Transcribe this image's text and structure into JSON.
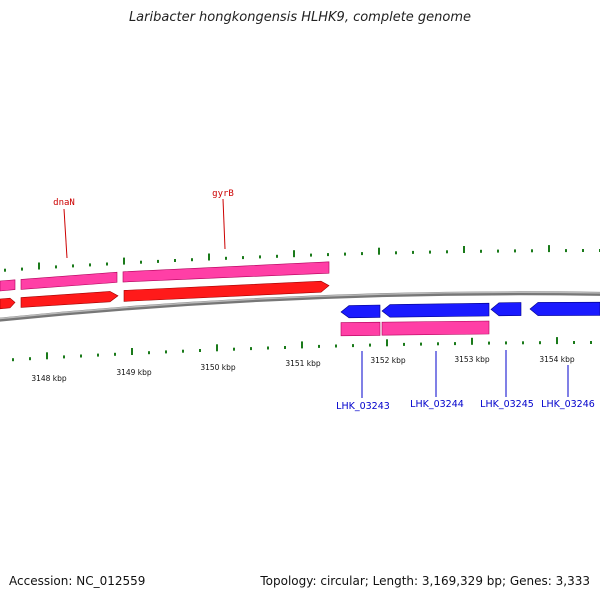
{
  "title": "Laribacter hongkongensis HLHK9, complete genome",
  "footer": {
    "accession": "Accession: NC_012559",
    "stats": "Topology: circular; Length: 3,169,329 bp; Genes: 3,333"
  },
  "colors": {
    "forward_cds": "#ff1a1a",
    "forward_gene": "#ff3fa6",
    "reverse_cds": "#1a1aff",
    "reverse_gene": "#ff3fa6",
    "backbone": "#888888",
    "ticks": "#1a7a1a",
    "forward_label": "#cc0000",
    "reverse_label": "#0000cc"
  },
  "axis_labels": [
    "3148 kbp",
    "3149 kbp",
    "3150 kbp",
    "3151 kbp",
    "3152 kbp",
    "3153 kbp",
    "3154 kbp"
  ],
  "forward_labels": [
    "dnaN",
    "gyrB"
  ],
  "reverse_labels": [
    "LHK_03243",
    "LHK_03244",
    "LHK_03245",
    "LHK_03246"
  ]
}
